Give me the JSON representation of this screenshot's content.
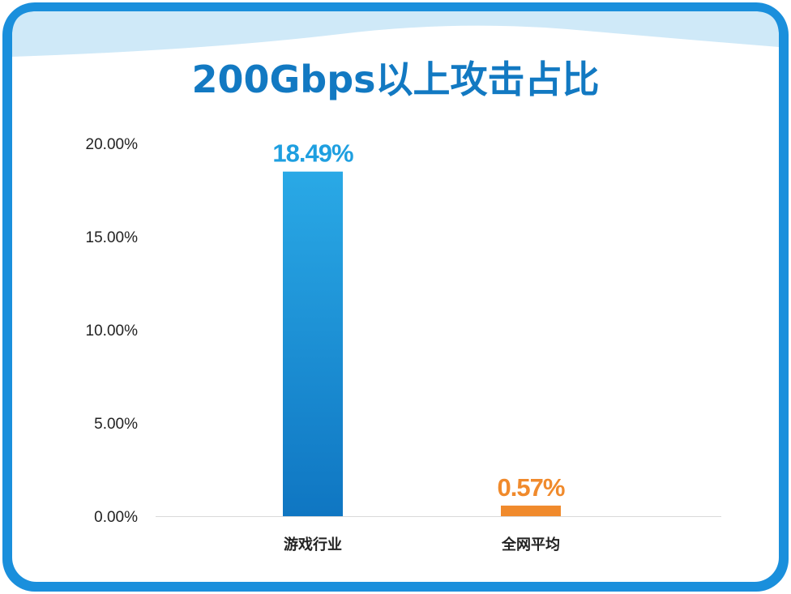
{
  "title": "200Gbps以上攻击占比",
  "colors": {
    "frame": "#1a8fdc",
    "wave": "#cfe9f8",
    "title": "#1279c2",
    "bar_primary_top": "#2aa9e6",
    "bar_primary_bottom": "#0f76c2",
    "bar_secondary": "#f08a2c",
    "label_primary": "#1e9fe0",
    "label_secondary": "#f08a2c"
  },
  "chart_data": {
    "type": "bar",
    "title": "200Gbps以上攻击占比",
    "categories": [
      "游戏行业",
      "全网平均"
    ],
    "values": [
      18.49,
      0.57
    ],
    "value_labels": [
      "18.49%",
      "0.57%"
    ],
    "yticks": [
      "0.00%",
      "5.00%",
      "10.00%",
      "15.00%",
      "20.00%"
    ],
    "ytick_values": [
      0,
      5,
      10,
      15,
      20
    ],
    "ylim": [
      0,
      20
    ],
    "grid": false,
    "legend": "none"
  }
}
